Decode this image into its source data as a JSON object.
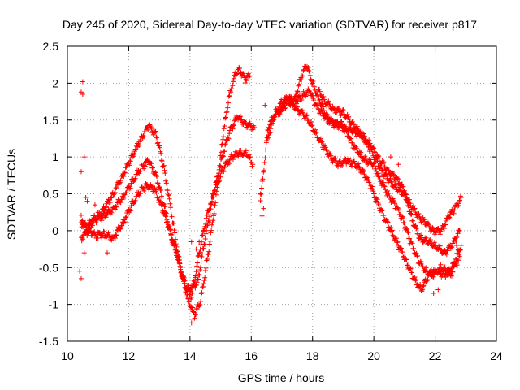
{
  "chart_data": {
    "type": "scatter",
    "title": "Day 245 of 2020, Sidereal Day-to-day VTEC variation (SDTVAR) for receiver p817",
    "xlabel": "GPS time / hours",
    "ylabel": "SDTVAR / TECUs",
    "xlim": [
      10,
      24
    ],
    "ylim": [
      -1.5,
      2.5
    ],
    "xticks": [
      10,
      12,
      14,
      16,
      18,
      20,
      22,
      24
    ],
    "yticks": [
      -1.5,
      -1,
      -0.5,
      0,
      0.5,
      1,
      1.5,
      2,
      2.5
    ],
    "xtick_labels": [
      "10",
      "12",
      "14",
      "16",
      "18",
      "20",
      "22",
      "24"
    ],
    "ytick_labels": [
      "-1.5",
      "-1",
      "-0.5",
      "0",
      "0.5",
      "1",
      "1.5",
      "2",
      "2.5"
    ],
    "grid": true,
    "marker": "plus",
    "color": "#ff0000",
    "series": [
      {
        "name": "track-a",
        "points": [
          [
            10.45,
            0.2
          ],
          [
            10.6,
            0.0
          ],
          [
            10.8,
            0.15
          ],
          [
            11.0,
            0.2
          ],
          [
            11.2,
            0.3
          ],
          [
            11.5,
            0.5
          ],
          [
            11.8,
            0.75
          ],
          [
            12.1,
            1.0
          ],
          [
            12.4,
            1.25
          ],
          [
            12.65,
            1.42
          ],
          [
            12.9,
            1.3
          ],
          [
            13.15,
            0.85
          ],
          [
            13.45,
            0.1
          ],
          [
            13.7,
            -0.55
          ],
          [
            13.95,
            -0.95
          ],
          [
            14.15,
            -1.15
          ],
          [
            14.35,
            -0.95
          ],
          [
            14.6,
            -0.3
          ],
          [
            14.85,
            0.45
          ],
          [
            15.05,
            1.2
          ],
          [
            15.25,
            1.75
          ],
          [
            15.45,
            2.1
          ],
          [
            15.6,
            2.2
          ],
          [
            15.8,
            2.05
          ],
          [
            15.95,
            2.1
          ]
        ]
      },
      {
        "name": "track-b",
        "points": [
          [
            10.45,
            0.1
          ],
          [
            10.7,
            0.05
          ],
          [
            10.9,
            0.15
          ],
          [
            11.2,
            0.2
          ],
          [
            11.5,
            0.3
          ],
          [
            11.8,
            0.45
          ],
          [
            12.1,
            0.65
          ],
          [
            12.4,
            0.85
          ],
          [
            12.65,
            0.95
          ],
          [
            12.9,
            0.75
          ],
          [
            13.15,
            0.35
          ],
          [
            13.4,
            -0.1
          ],
          [
            13.65,
            -0.45
          ],
          [
            13.85,
            -0.75
          ],
          [
            14.0,
            -0.8
          ],
          [
            14.25,
            -0.7
          ],
          [
            14.5,
            -0.1
          ],
          [
            14.8,
            0.55
          ],
          [
            15.05,
            1.0
          ],
          [
            15.3,
            1.35
          ],
          [
            15.55,
            1.55
          ],
          [
            15.8,
            1.45
          ],
          [
            16.1,
            1.4
          ]
        ]
      },
      {
        "name": "track-c",
        "points": [
          [
            10.45,
            -0.1
          ],
          [
            10.7,
            0.0
          ],
          [
            10.9,
            -0.05
          ],
          [
            11.2,
            -0.05
          ],
          [
            11.5,
            -0.1
          ],
          [
            11.8,
            0.1
          ],
          [
            12.1,
            0.35
          ],
          [
            12.4,
            0.55
          ],
          [
            12.6,
            0.62
          ],
          [
            12.85,
            0.55
          ],
          [
            13.1,
            0.3
          ],
          [
            13.35,
            0.0
          ],
          [
            13.6,
            -0.35
          ],
          [
            13.85,
            -0.75
          ],
          [
            14.05,
            -0.9
          ],
          [
            14.3,
            -0.3
          ],
          [
            14.55,
            0.2
          ],
          [
            14.8,
            0.55
          ],
          [
            15.1,
            0.85
          ],
          [
            15.35,
            1.0
          ],
          [
            15.6,
            1.05
          ],
          [
            15.85,
            1.05
          ],
          [
            16.05,
            0.9
          ]
        ]
      },
      {
        "name": "track-d",
        "points": [
          [
            16.3,
            0.4
          ],
          [
            16.55,
            1.4
          ],
          [
            16.8,
            1.6
          ],
          [
            17.0,
            1.75
          ],
          [
            17.2,
            1.8
          ],
          [
            17.4,
            1.75
          ],
          [
            17.6,
            1.8
          ],
          [
            17.75,
            1.85
          ],
          [
            17.9,
            1.9
          ],
          [
            18.1,
            1.7
          ],
          [
            18.3,
            1.6
          ],
          [
            18.5,
            1.5
          ],
          [
            18.75,
            1.45
          ],
          [
            19.0,
            1.4
          ],
          [
            19.3,
            1.35
          ],
          [
            19.6,
            1.3
          ],
          [
            19.9,
            1.15
          ],
          [
            20.2,
            0.95
          ],
          [
            20.5,
            0.8
          ],
          [
            20.75,
            0.7
          ],
          [
            21.0,
            0.55
          ],
          [
            21.25,
            0.15
          ],
          [
            21.5,
            -0.1
          ],
          [
            21.75,
            -0.15
          ],
          [
            22.0,
            -0.2
          ],
          [
            22.3,
            -0.3
          ],
          [
            22.55,
            -0.2
          ],
          [
            22.8,
            0.0
          ]
        ]
      },
      {
        "name": "track-e",
        "points": [
          [
            16.5,
            1.2
          ],
          [
            16.75,
            1.55
          ],
          [
            17.0,
            1.65
          ],
          [
            17.2,
            1.8
          ],
          [
            17.4,
            1.75
          ],
          [
            17.6,
            2.05
          ],
          [
            17.8,
            2.25
          ],
          [
            18.0,
            2.0
          ],
          [
            18.2,
            1.8
          ],
          [
            18.45,
            1.55
          ],
          [
            18.7,
            1.45
          ],
          [
            18.95,
            1.45
          ],
          [
            19.2,
            1.25
          ],
          [
            19.5,
            1.05
          ],
          [
            19.75,
            0.95
          ],
          [
            20.0,
            0.9
          ],
          [
            20.2,
            0.7
          ],
          [
            20.45,
            0.5
          ],
          [
            20.7,
            0.35
          ],
          [
            20.95,
            0.15
          ],
          [
            21.2,
            -0.15
          ],
          [
            21.45,
            -0.4
          ],
          [
            21.7,
            -0.55
          ],
          [
            21.95,
            -0.6
          ],
          [
            22.2,
            -0.5
          ],
          [
            22.5,
            -0.6
          ],
          [
            22.8,
            -0.35
          ]
        ]
      },
      {
        "name": "track-f",
        "points": [
          [
            16.9,
            1.6
          ],
          [
            17.2,
            1.75
          ],
          [
            17.5,
            1.65
          ],
          [
            17.8,
            1.55
          ],
          [
            18.05,
            1.35
          ],
          [
            18.35,
            1.15
          ],
          [
            18.6,
            1.0
          ],
          [
            18.85,
            0.9
          ],
          [
            19.1,
            0.95
          ],
          [
            19.4,
            0.9
          ],
          [
            19.65,
            0.8
          ],
          [
            19.9,
            0.6
          ],
          [
            20.2,
            0.3
          ],
          [
            20.5,
            0.05
          ],
          [
            20.8,
            -0.2
          ],
          [
            21.05,
            -0.4
          ],
          [
            21.3,
            -0.65
          ],
          [
            21.55,
            -0.8
          ],
          [
            21.8,
            -0.6
          ],
          [
            22.05,
            -0.55
          ],
          [
            22.3,
            -0.6
          ],
          [
            22.55,
            -0.5
          ],
          [
            22.85,
            -0.2
          ]
        ]
      },
      {
        "name": "track-g",
        "points": [
          [
            18.2,
            1.9
          ],
          [
            18.4,
            1.75
          ],
          [
            18.7,
            1.65
          ],
          [
            19.0,
            1.6
          ],
          [
            19.3,
            1.45
          ],
          [
            19.6,
            1.3
          ],
          [
            19.9,
            1.1
          ],
          [
            20.2,
            0.85
          ],
          [
            20.45,
            0.7
          ],
          [
            20.7,
            0.6
          ],
          [
            20.95,
            0.5
          ],
          [
            21.2,
            0.35
          ],
          [
            21.45,
            0.2
          ],
          [
            21.7,
            0.1
          ],
          [
            21.95,
            0.0
          ],
          [
            22.2,
            0.0
          ],
          [
            22.45,
            0.2
          ],
          [
            22.65,
            0.3
          ],
          [
            22.85,
            0.45
          ]
        ]
      },
      {
        "name": "outliers",
        "points": [
          [
            10.5,
            2.02
          ],
          [
            10.45,
            1.88
          ],
          [
            10.5,
            1.85
          ],
          [
            10.55,
            1.0
          ],
          [
            10.45,
            0.8
          ],
          [
            10.6,
            0.45
          ],
          [
            10.4,
            -0.55
          ],
          [
            10.45,
            -0.65
          ],
          [
            10.55,
            -0.3
          ],
          [
            10.65,
            0.4
          ],
          [
            10.9,
            0.35
          ],
          [
            11.0,
            -0.1
          ],
          [
            11.3,
            -0.3
          ],
          [
            14.05,
            -1.25
          ],
          [
            14.1,
            -1.2
          ],
          [
            14.05,
            -0.15
          ],
          [
            14.2,
            -0.25
          ],
          [
            14.3,
            -0.15
          ],
          [
            16.35,
            0.2
          ],
          [
            16.3,
            0.5
          ],
          [
            16.4,
            0.3
          ],
          [
            16.45,
            1.7
          ],
          [
            20.55,
            1.0
          ],
          [
            20.8,
            0.9
          ],
          [
            21.95,
            -0.85
          ],
          [
            22.1,
            -0.8
          ],
          [
            22.7,
            -0.2
          ]
        ]
      }
    ]
  }
}
